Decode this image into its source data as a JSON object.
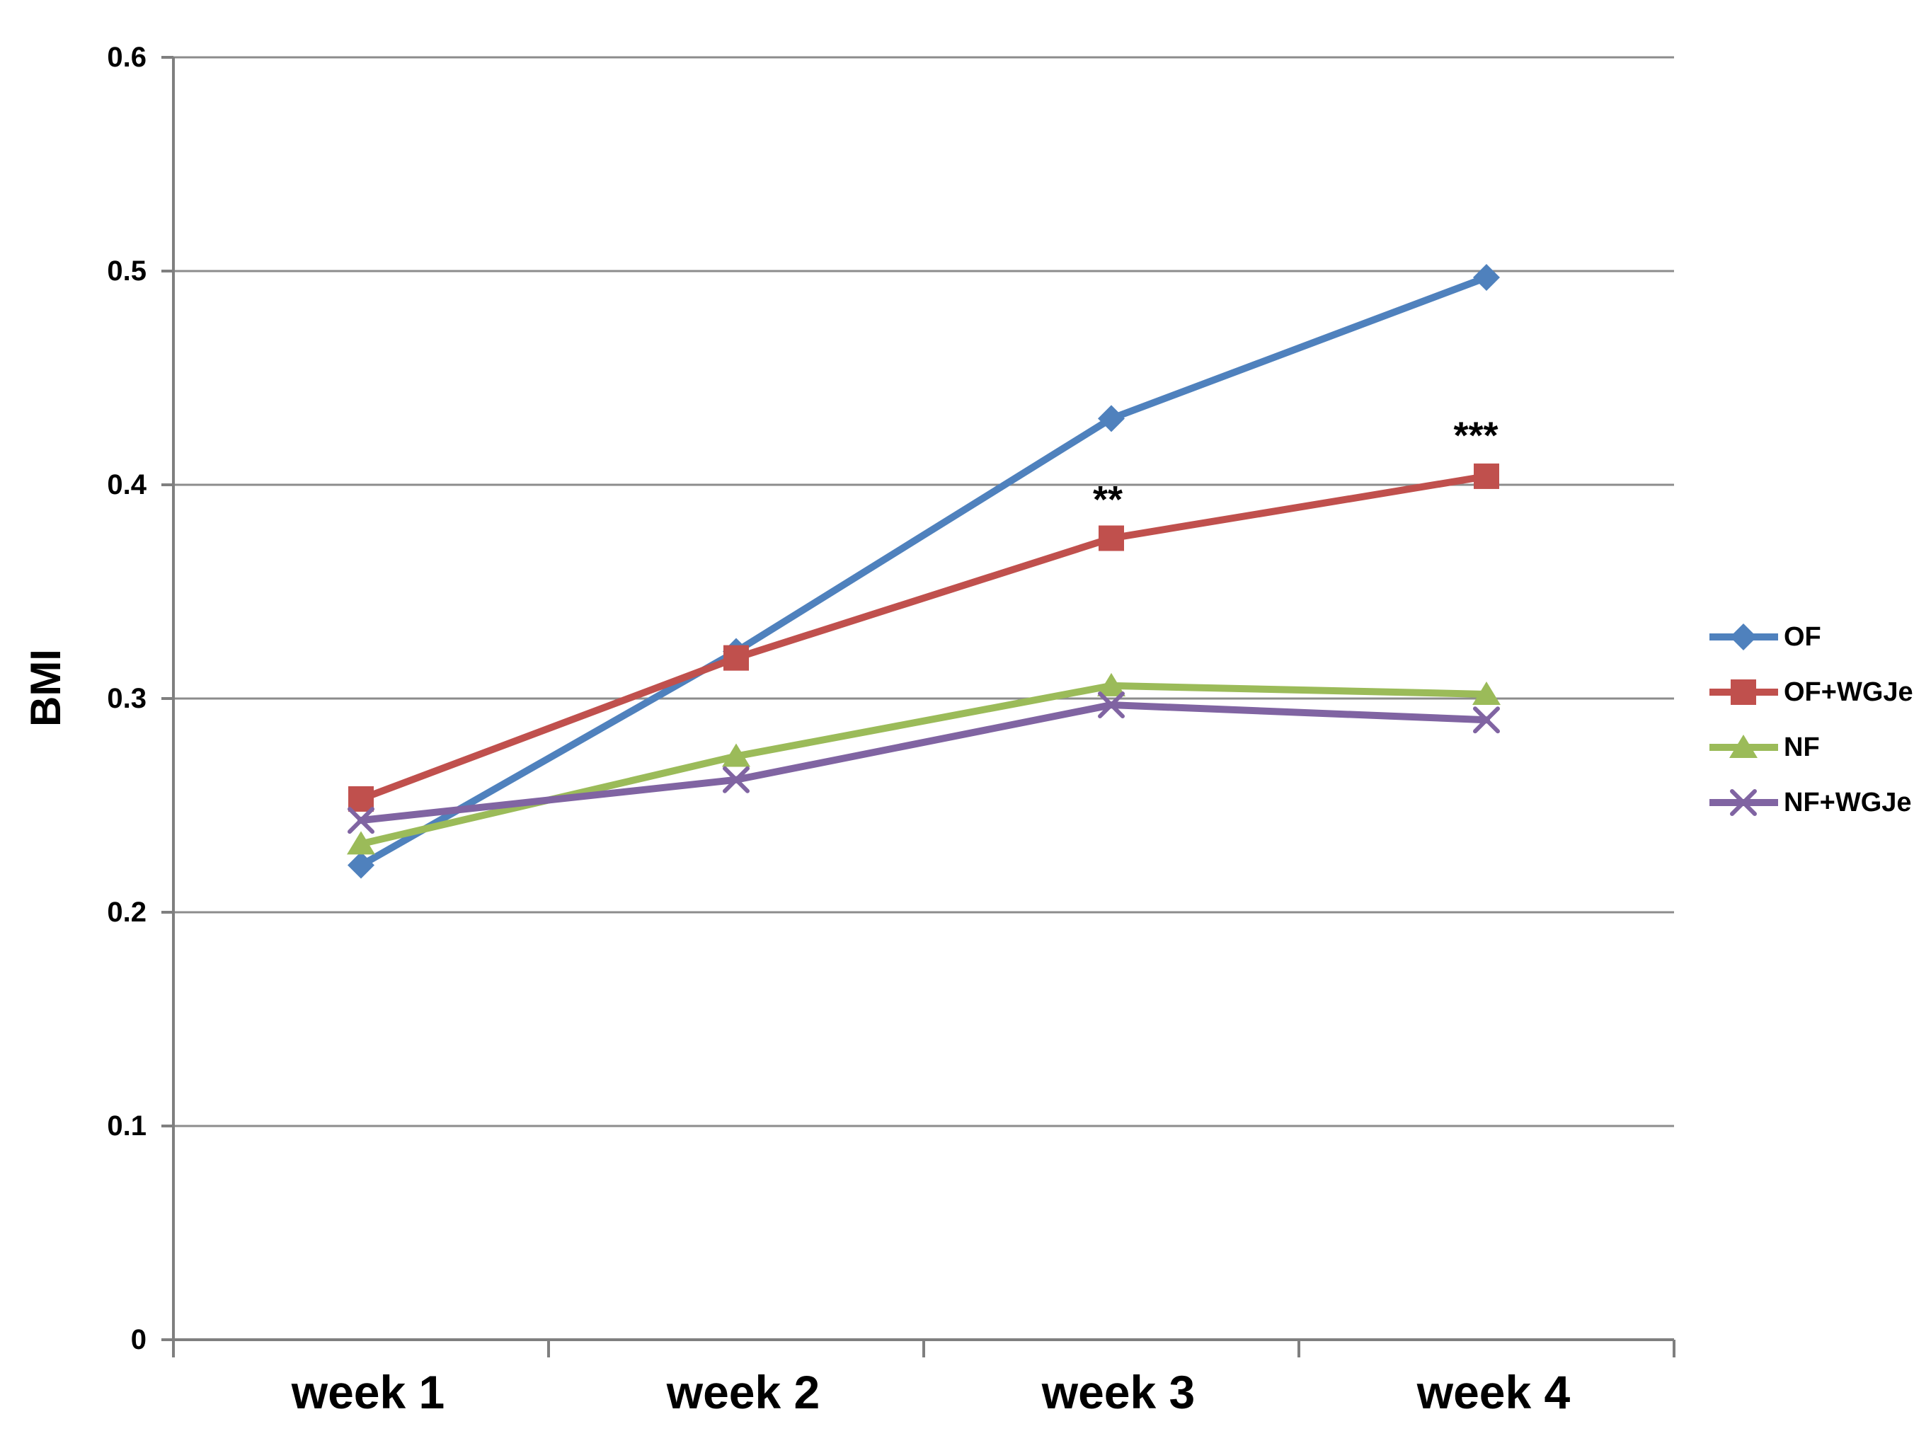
{
  "chart_data": {
    "type": "line",
    "title": "",
    "ylabel": "BMI",
    "xlabel": "",
    "categories": [
      "week 1",
      "week 2",
      "week 3",
      "week 4"
    ],
    "series": [
      {
        "name": "OF",
        "marker": "diamond",
        "color": "#4F81BD",
        "values": [
          0.222,
          0.322,
          0.431,
          0.497
        ]
      },
      {
        "name": "OF+WGJe",
        "marker": "square",
        "color": "#C0504D",
        "values": [
          0.253,
          0.319,
          0.375,
          0.404
        ]
      },
      {
        "name": "NF",
        "marker": "triangle",
        "color": "#9BBB59",
        "values": [
          0.232,
          0.273,
          0.306,
          0.302
        ]
      },
      {
        "name": "NF+WGJe",
        "marker": "x",
        "color": "#8064A2",
        "values": [
          0.243,
          0.262,
          0.297,
          0.29
        ]
      }
    ],
    "ylim": [
      0,
      0.6
    ],
    "yticks": [
      {
        "value": 0.0,
        "label": "0"
      },
      {
        "value": 0.1,
        "label": "0.1"
      },
      {
        "value": 0.2,
        "label": "0.2"
      },
      {
        "value": 0.3,
        "label": "0.3"
      },
      {
        "value": 0.4,
        "label": "0.4"
      },
      {
        "value": 0.5,
        "label": "0.5"
      },
      {
        "value": 0.6,
        "label": "0.6"
      }
    ],
    "grid": true,
    "legend_position": "right",
    "legend_items": [
      "OF",
      "OF+WGJe",
      "NF",
      "NF+WGJe"
    ],
    "annotations": [
      {
        "text": "**",
        "category_index": 2,
        "y": 0.393,
        "dx": -5
      },
      {
        "text": "***",
        "category_index": 3,
        "y": 0.423,
        "dx": -15
      }
    ],
    "colors": {
      "grid": "#8C8C8C",
      "axis": "#7F7F7F",
      "text": "#000000",
      "background": "#FFFFFF"
    }
  }
}
